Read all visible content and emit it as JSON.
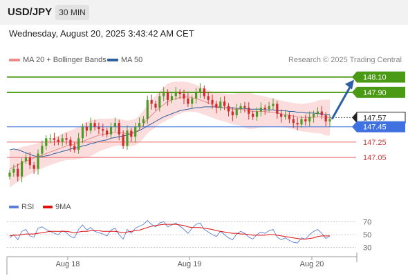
{
  "header": {
    "symbol": "USD/JPY",
    "timeframe": "30 MIN"
  },
  "datetime": "Wednesday, August 20, 2025 3:43:42 AM CET",
  "legend": {
    "ma20": "MA 20 + Bollinger Bands",
    "ma50": "MA 50",
    "rsi": "RSI",
    "ma9": "9MA"
  },
  "credit": "Research © 2025 Trading Central",
  "colors": {
    "ma20": "#e88a8a",
    "bands": "#fbd2d2",
    "ma50": "#2f5f9e",
    "resistance": "#4a9a16",
    "pivot": "#5b86df",
    "support": "#e86b6b",
    "current": "#2b2b2b",
    "arrow": "#2c5fa3",
    "rsi": "#5b7fd6",
    "rsi_ma": "#e01010",
    "candle_up": "#4d9a26",
    "candle_down": "#d22a2a"
  },
  "chart_data": [
    {
      "type": "line",
      "title": "USD/JPY",
      "x_labels": [
        "Aug 18",
        "Aug 19",
        "Aug 20"
      ],
      "y_range": [
        146.6,
        148.25
      ],
      "levels": [
        {
          "name": "resistance_2",
          "value": 148.1,
          "label": "148.10"
        },
        {
          "name": "resistance_1",
          "value": 147.9,
          "label": "147.90"
        },
        {
          "name": "current",
          "value": 147.57,
          "label": "147.57"
        },
        {
          "name": "pivot",
          "value": 147.45,
          "label": "147.45"
        },
        {
          "name": "support_1",
          "value": 147.25,
          "label": "147.25"
        },
        {
          "name": "support_2",
          "value": 147.05,
          "label": "147.05"
        }
      ],
      "close": [
        146.85,
        146.9,
        146.8,
        147.0,
        147.05,
        146.95,
        146.9,
        147.1,
        147.2,
        147.3,
        147.3,
        147.28,
        147.25,
        147.3,
        147.28,
        147.2,
        147.15,
        147.3,
        147.45,
        147.4,
        147.5,
        147.45,
        147.42,
        147.4,
        147.35,
        147.45,
        147.5,
        147.35,
        147.2,
        147.4,
        147.32,
        147.45,
        147.5,
        147.55,
        147.8,
        147.75,
        147.7,
        147.85,
        147.9,
        147.8,
        147.85,
        147.9,
        147.88,
        147.82,
        147.75,
        147.82,
        147.9,
        147.95,
        147.85,
        147.8,
        147.75,
        147.7,
        147.78,
        147.72,
        147.65,
        147.6,
        147.68,
        147.72,
        147.7,
        147.62,
        147.58,
        147.65,
        147.7,
        147.68,
        147.72,
        147.75,
        147.62,
        147.58,
        147.6,
        147.55,
        147.5,
        147.48,
        147.55,
        147.52,
        147.58,
        147.62,
        147.65,
        147.6,
        147.52,
        147.55
      ],
      "ma20": [
        146.9,
        146.92,
        146.95,
        146.98,
        147.0,
        147.02,
        147.04,
        147.06,
        147.08,
        147.1,
        147.12,
        147.14,
        147.16,
        147.18,
        147.2,
        147.21,
        147.22,
        147.24,
        147.26,
        147.28,
        147.3,
        147.32,
        147.34,
        147.35,
        147.36,
        147.37,
        147.38,
        147.38,
        147.37,
        147.36,
        147.37,
        147.38,
        147.42,
        147.48,
        147.55,
        147.6,
        147.65,
        147.7,
        147.74,
        147.78,
        147.8,
        147.82,
        147.83,
        147.84,
        147.84,
        147.83,
        147.82,
        147.8,
        147.78,
        147.76,
        147.74,
        147.72,
        147.71,
        147.7,
        147.69,
        147.68,
        147.68,
        147.68,
        147.67,
        147.66,
        147.65,
        147.65,
        147.65,
        147.65,
        147.64,
        147.64,
        147.63,
        147.62,
        147.61,
        147.6,
        147.59,
        147.58,
        147.57,
        147.57,
        147.57,
        147.57,
        147.58,
        147.58,
        147.57,
        147.57
      ],
      "ma50": [
        147.15,
        147.16,
        147.15,
        147.13,
        147.11,
        147.09,
        147.07,
        147.06,
        147.06,
        147.07,
        147.08,
        147.1,
        147.11,
        147.13,
        147.14,
        147.16,
        147.17,
        147.18,
        147.2,
        147.21,
        147.23,
        147.24,
        147.26,
        147.27,
        147.28,
        147.3,
        147.31,
        147.32,
        147.33,
        147.34,
        147.36,
        147.38,
        147.4,
        147.43,
        147.46,
        147.49,
        147.52,
        147.55,
        147.58,
        147.6,
        147.62,
        147.64,
        147.66,
        147.67,
        147.68,
        147.69,
        147.7,
        147.7,
        147.71,
        147.71,
        147.71,
        147.71,
        147.7,
        147.7,
        147.7,
        147.7,
        147.69,
        147.69,
        147.69,
        147.68,
        147.68,
        147.68,
        147.68,
        147.67,
        147.67,
        147.67,
        147.66,
        147.66,
        147.66,
        147.65,
        147.65,
        147.64,
        147.64,
        147.63,
        147.63,
        147.63,
        147.62,
        147.62,
        147.61,
        147.61
      ]
    },
    {
      "type": "line",
      "title": "RSI",
      "y_ticks": [
        70,
        50,
        30
      ],
      "y_range": [
        20,
        80
      ],
      "rsi": [
        45,
        50,
        42,
        55,
        58,
        48,
        46,
        60,
        62,
        58,
        55,
        52,
        50,
        56,
        53,
        47,
        45,
        58,
        65,
        57,
        61,
        55,
        53,
        51,
        48,
        57,
        60,
        50,
        43,
        58,
        52,
        60,
        63,
        66,
        72,
        66,
        62,
        68,
        70,
        62,
        65,
        68,
        63,
        58,
        52,
        60,
        66,
        68,
        58,
        54,
        50,
        47,
        55,
        50,
        45,
        42,
        51,
        55,
        52,
        46,
        43,
        50,
        54,
        52,
        56,
        58,
        46,
        42,
        45,
        41,
        38,
        37,
        45,
        43,
        50,
        55,
        58,
        52,
        44,
        48
      ],
      "rsi_ma": [
        48,
        49,
        49,
        50,
        51,
        51,
        51,
        52,
        53,
        54,
        55,
        55,
        55,
        55,
        55,
        54,
        53,
        54,
        55,
        55,
        56,
        56,
        56,
        55,
        55,
        55,
        55,
        54,
        53,
        54,
        55,
        56,
        57,
        59,
        61,
        63,
        64,
        65,
        66,
        66,
        66,
        66,
        65,
        64,
        62,
        61,
        61,
        61,
        60,
        59,
        58,
        56,
        55,
        54,
        53,
        52,
        52,
        51,
        51,
        50,
        49,
        49,
        49,
        49,
        50,
        50,
        49,
        48,
        47,
        46,
        45,
        44,
        43,
        43,
        44,
        45,
        47,
        48,
        48,
        48
      ]
    }
  ]
}
